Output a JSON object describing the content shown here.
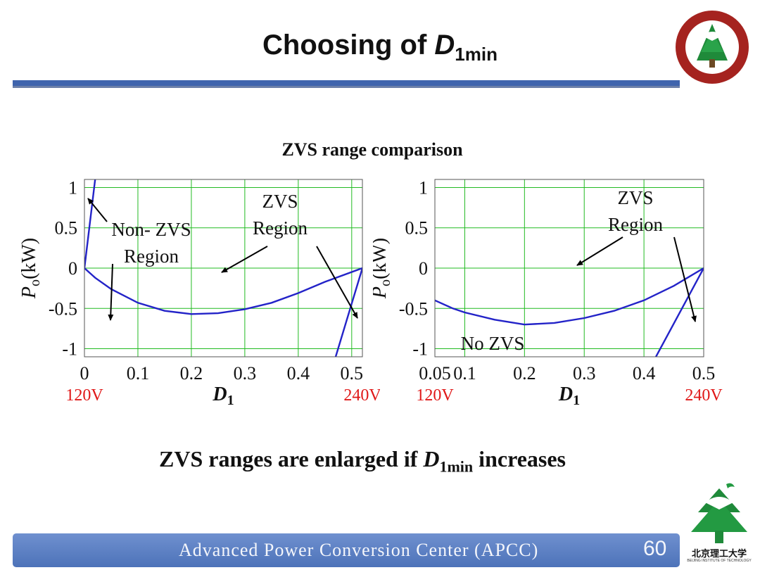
{
  "slide": {
    "title_prefix": "Choosing of ",
    "title_var": "D",
    "title_sub": "1min",
    "chart_title": "ZVS range comparison",
    "conclusion_before": "ZVS ranges are enlarged if ",
    "conclusion_var": "D",
    "conclusion_sub": "1min",
    "conclusion_after": " increases",
    "footer_text": "Advanced  Power  Conversion  Center (APCC)",
    "page_number": "60",
    "logo_text": "北京理工大学",
    "logo_subtext": "BEIJING INSTITUTE OF TECHNOLOGY"
  },
  "colors": {
    "curve": "#2323c8",
    "annotation_red": "#e01818",
    "grid": "#22bb22",
    "bar": "#3f64ad"
  },
  "chart_data": [
    {
      "type": "line",
      "xlabel_var": "D",
      "xlabel_sub": "1",
      "ylabel_var": "P",
      "ylabel_sub": "o",
      "ylabel_unit": "(kW)",
      "xlim": [
        0,
        0.52
      ],
      "ylim": [
        -1.1,
        1.1
      ],
      "xticks": [
        0,
        0.1,
        0.2,
        0.3,
        0.4,
        0.5
      ],
      "xtick_labels": [
        "0",
        "0.1",
        "0.2",
        "0.3",
        "0.4",
        "0.5"
      ],
      "yticks": [
        1,
        0.5,
        0,
        -0.5,
        -1
      ],
      "ytick_labels": [
        "1",
        "0.5",
        "0",
        "-0.5",
        "-1"
      ],
      "x_start_label": "120V",
      "x_end_label": "240V",
      "grid": true,
      "series": [
        {
          "points": [
            [
              0,
              0
            ],
            [
              0.02,
              1.1
            ]
          ]
        },
        {
          "points": [
            [
              0,
              0
            ],
            [
              0.02,
              -0.12
            ],
            [
              0.05,
              -0.26
            ],
            [
              0.1,
              -0.43
            ],
            [
              0.15,
              -0.53
            ],
            [
              0.2,
              -0.57
            ],
            [
              0.25,
              -0.56
            ],
            [
              0.3,
              -0.51
            ],
            [
              0.35,
              -0.43
            ],
            [
              0.4,
              -0.31
            ],
            [
              0.45,
              -0.17
            ],
            [
              0.52,
              0
            ]
          ]
        },
        {
          "points": [
            [
              0.52,
              0
            ],
            [
              0.47,
              -1.1
            ]
          ]
        }
      ],
      "annotations": [
        {
          "lines": [
            "Non- ZVS",
            "Region"
          ]
        },
        {
          "lines": [
            "ZVS",
            "Region"
          ]
        }
      ]
    },
    {
      "type": "line",
      "xlabel_var": "D",
      "xlabel_sub": "1",
      "ylabel_var": "P",
      "ylabel_sub": "o",
      "ylabel_unit": "(kW)",
      "xlim": [
        0.05,
        0.5
      ],
      "ylim": [
        -1.1,
        1.1
      ],
      "xticks": [
        0.05,
        0.1,
        0.2,
        0.3,
        0.4,
        0.5
      ],
      "xtick_labels": [
        "0.05",
        "0.1",
        "0.2",
        "0.3",
        "0.4",
        "0.5"
      ],
      "yticks": [
        1,
        0.5,
        0,
        -0.5,
        -1
      ],
      "ytick_labels": [
        "1",
        "0.5",
        "0",
        "-0.5",
        "-1"
      ],
      "x_start_label": "120V",
      "x_end_label": "240V",
      "grid": true,
      "series": [
        {
          "points": [
            [
              0.05,
              -0.4
            ],
            [
              0.08,
              -0.5
            ],
            [
              0.1,
              -0.55
            ],
            [
              0.15,
              -0.64
            ],
            [
              0.2,
              -0.7
            ],
            [
              0.25,
              -0.68
            ],
            [
              0.3,
              -0.62
            ],
            [
              0.35,
              -0.53
            ],
            [
              0.4,
              -0.4
            ],
            [
              0.45,
              -0.22
            ],
            [
              0.5,
              0
            ]
          ]
        },
        {
          "points": [
            [
              0.5,
              0
            ],
            [
              0.42,
              -1.1
            ]
          ]
        }
      ],
      "annotations": [
        {
          "lines": [
            "ZVS",
            "Region"
          ]
        },
        {
          "lines": [
            "No ZVS"
          ]
        }
      ]
    }
  ]
}
